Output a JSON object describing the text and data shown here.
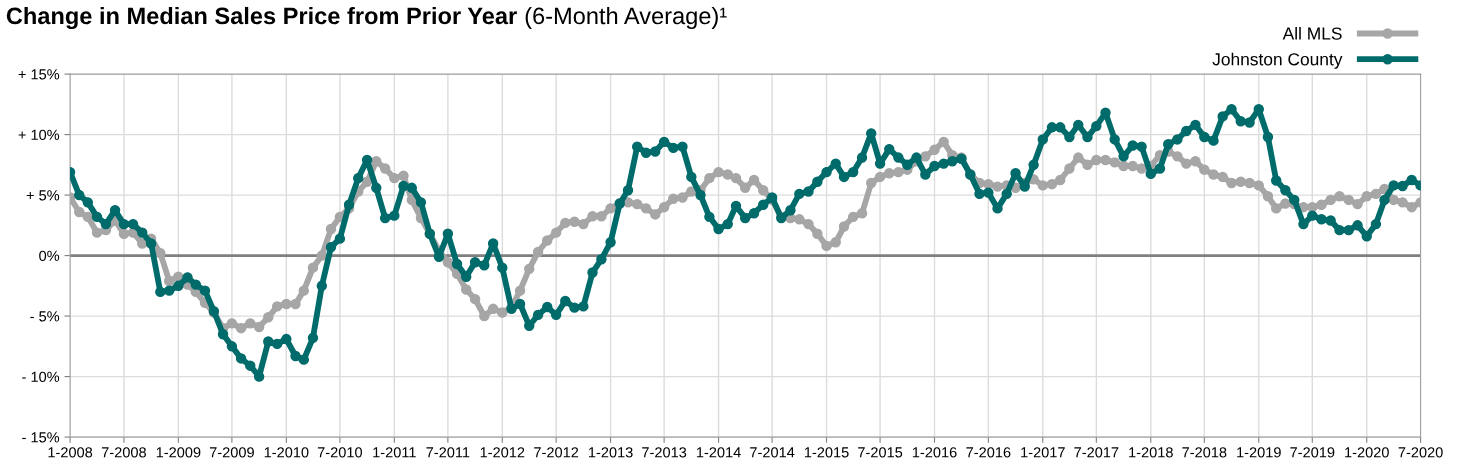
{
  "chart_data": {
    "type": "line",
    "title": "Change in Median Sales Price from Prior Year",
    "subtitle": "(6-Month Average)¹",
    "x": [
      "2008-01",
      "2008-02",
      "2008-03",
      "2008-04",
      "2008-05",
      "2008-06",
      "2008-07",
      "2008-08",
      "2008-09",
      "2008-10",
      "2008-11",
      "2008-12",
      "2009-01",
      "2009-02",
      "2009-03",
      "2009-04",
      "2009-05",
      "2009-06",
      "2009-07",
      "2009-08",
      "2009-09",
      "2009-10",
      "2009-11",
      "2009-12",
      "2010-01",
      "2010-02",
      "2010-03",
      "2010-04",
      "2010-05",
      "2010-06",
      "2010-07",
      "2010-08",
      "2010-09",
      "2010-10",
      "2010-11",
      "2010-12",
      "2011-01",
      "2011-02",
      "2011-03",
      "2011-04",
      "2011-05",
      "2011-06",
      "2011-07",
      "2011-08",
      "2011-09",
      "2011-10",
      "2011-11",
      "2011-12",
      "2012-01",
      "2012-02",
      "2012-03",
      "2012-04",
      "2012-05",
      "2012-06",
      "2012-07",
      "2012-08",
      "2012-09",
      "2012-10",
      "2012-11",
      "2012-12",
      "2013-01",
      "2013-02",
      "2013-03",
      "2013-04",
      "2013-05",
      "2013-06",
      "2013-07",
      "2013-08",
      "2013-09",
      "2013-10",
      "2013-11",
      "2013-12",
      "2014-01",
      "2014-02",
      "2014-03",
      "2014-04",
      "2014-05",
      "2014-06",
      "2014-07",
      "2014-08",
      "2014-09",
      "2014-10",
      "2014-11",
      "2014-12",
      "2015-01",
      "2015-02",
      "2015-03",
      "2015-04",
      "2015-05",
      "2015-06",
      "2015-07",
      "2015-08",
      "2015-09",
      "2015-10",
      "2015-11",
      "2015-12",
      "2016-01",
      "2016-02",
      "2016-03",
      "2016-04",
      "2016-05",
      "2016-06",
      "2016-07",
      "2016-08",
      "2016-09",
      "2016-10",
      "2016-11",
      "2016-12",
      "2017-01",
      "2017-02",
      "2017-03",
      "2017-04",
      "2017-05",
      "2017-06",
      "2017-07",
      "2017-08",
      "2017-09",
      "2017-10",
      "2017-11",
      "2017-12",
      "2018-01",
      "2018-02",
      "2018-03",
      "2018-04",
      "2018-05",
      "2018-06",
      "2018-07",
      "2018-08",
      "2018-09",
      "2018-10",
      "2018-11",
      "2018-12",
      "2019-01",
      "2019-02",
      "2019-03",
      "2019-04",
      "2019-05",
      "2019-06",
      "2019-07",
      "2019-08",
      "2019-09",
      "2019-10",
      "2019-11",
      "2019-12",
      "2020-01",
      "2020-02",
      "2020-03",
      "2020-04",
      "2020-05",
      "2020-06",
      "2020-07"
    ],
    "series": [
      {
        "name": "All MLS",
        "color": "#a6a6a6",
        "values": [
          4.8,
          3.6,
          3.2,
          1.9,
          2.1,
          2.9,
          1.8,
          1.9,
          1.0,
          1.4,
          0.2,
          -2.1,
          -1.75,
          -2.4,
          -3.0,
          -3.9,
          -4.7,
          -6.0,
          -5.6,
          -6.0,
          -5.6,
          -5.9,
          -5.1,
          -4.2,
          -4.0,
          -4.0,
          -2.9,
          -1.0,
          0.0,
          2.2,
          3.2,
          3.9,
          5.3,
          6.1,
          7.8,
          7.2,
          6.4,
          6.6,
          4.6,
          3.1,
          1.8,
          0.4,
          -0.55,
          -1.5,
          -2.8,
          -3.6,
          -5.0,
          -4.4,
          -4.7,
          -4.3,
          -2.9,
          -1.1,
          0.3,
          1.25,
          1.9,
          2.7,
          2.8,
          2.6,
          3.25,
          3.25,
          3.9,
          4.3,
          4.4,
          4.25,
          3.9,
          3.4,
          4.0,
          4.7,
          4.8,
          5.3,
          5.4,
          6.4,
          6.9,
          6.7,
          6.4,
          5.6,
          6.25,
          5.4,
          4.6,
          3.2,
          3.1,
          3.0,
          2.6,
          1.8,
          0.8,
          1.1,
          2.4,
          3.2,
          3.5,
          6.0,
          6.5,
          6.8,
          6.9,
          7.1,
          7.8,
          8.2,
          8.75,
          9.4,
          8.3,
          8.1,
          6.7,
          6.0,
          5.9,
          5.7,
          5.8,
          5.6,
          6.0,
          6.3,
          5.8,
          5.9,
          6.25,
          7.2,
          8.1,
          7.5,
          7.9,
          7.9,
          7.7,
          7.4,
          7.4,
          7.2,
          7.4,
          8.3,
          8.6,
          8.2,
          7.6,
          7.8,
          7.1,
          6.7,
          6.5,
          6.0,
          6.1,
          6.0,
          5.8,
          4.9,
          3.9,
          4.3,
          4.25,
          4.0,
          4.0,
          4.2,
          4.6,
          4.9,
          4.6,
          4.25,
          4.9,
          5.1,
          5.5,
          4.6,
          4.4,
          4.0,
          4.4
        ]
      },
      {
        "name": "Johnston County",
        "color": "#006b6b",
        "values": [
          6.9,
          5.0,
          4.4,
          3.2,
          2.6,
          3.75,
          2.6,
          2.6,
          1.9,
          1.0,
          -3.0,
          -2.9,
          -2.5,
          -1.8,
          -2.4,
          -2.9,
          -4.6,
          -6.5,
          -7.5,
          -8.5,
          -9.1,
          -10.0,
          -7.1,
          -7.3,
          -6.9,
          -8.3,
          -8.6,
          -6.8,
          -2.5,
          0.7,
          1.4,
          4.2,
          6.4,
          7.9,
          5.6,
          3.1,
          3.3,
          5.75,
          5.6,
          4.4,
          1.8,
          -0.1,
          1.8,
          -0.7,
          -1.75,
          -0.55,
          -0.8,
          1.0,
          -1.0,
          -4.4,
          -4.0,
          -5.8,
          -4.9,
          -4.25,
          -4.9,
          -3.75,
          -4.3,
          -4.2,
          -1.4,
          -0.3,
          1.1,
          4.3,
          5.4,
          9.0,
          8.5,
          8.6,
          9.4,
          8.9,
          9.0,
          6.5,
          5.0,
          3.2,
          2.2,
          2.6,
          4.1,
          3.1,
          3.5,
          4.2,
          4.8,
          3.1,
          3.75,
          5.1,
          5.3,
          6.1,
          6.9,
          7.6,
          6.5,
          6.9,
          8.1,
          10.1,
          7.6,
          8.8,
          8.1,
          7.5,
          8.1,
          6.7,
          7.4,
          7.6,
          7.8,
          8.0,
          6.7,
          5.1,
          5.2,
          3.9,
          5.1,
          6.8,
          5.7,
          7.5,
          9.6,
          10.6,
          10.6,
          9.8,
          10.8,
          9.8,
          10.7,
          11.8,
          9.6,
          8.2,
          9.1,
          9.0,
          6.75,
          7.2,
          9.2,
          9.6,
          10.3,
          10.8,
          9.8,
          9.5,
          11.5,
          12.1,
          11.1,
          11.0,
          12.1,
          9.8,
          6.2,
          5.4,
          4.6,
          2.6,
          3.3,
          3.0,
          2.9,
          2.1,
          2.1,
          2.5,
          1.6,
          2.6,
          4.6,
          5.8,
          5.75,
          6.25,
          5.8
        ]
      }
    ],
    "xlim": [
      "2008-01",
      "2020-07"
    ],
    "xticks": [
      {
        "value": "2008-01",
        "label": "1-2008"
      },
      {
        "value": "2008-07",
        "label": "7-2008"
      },
      {
        "value": "2009-01",
        "label": "1-2009"
      },
      {
        "value": "2009-07",
        "label": "7-2009"
      },
      {
        "value": "2010-01",
        "label": "1-2010"
      },
      {
        "value": "2010-07",
        "label": "7-2010"
      },
      {
        "value": "2011-01",
        "label": "1-2011"
      },
      {
        "value": "2011-07",
        "label": "7-2011"
      },
      {
        "value": "2012-01",
        "label": "1-2012"
      },
      {
        "value": "2012-07",
        "label": "7-2012"
      },
      {
        "value": "2013-01",
        "label": "1-2013"
      },
      {
        "value": "2013-07",
        "label": "7-2013"
      },
      {
        "value": "2014-01",
        "label": "1-2014"
      },
      {
        "value": "2014-07",
        "label": "7-2014"
      },
      {
        "value": "2015-01",
        "label": "1-2015"
      },
      {
        "value": "2015-07",
        "label": "7-2015"
      },
      {
        "value": "2016-01",
        "label": "1-2016"
      },
      {
        "value": "2016-07",
        "label": "7-2016"
      },
      {
        "value": "2017-01",
        "label": "1-2017"
      },
      {
        "value": "2017-07",
        "label": "7-2017"
      },
      {
        "value": "2018-01",
        "label": "1-2018"
      },
      {
        "value": "2018-07",
        "label": "7-2018"
      },
      {
        "value": "2019-01",
        "label": "1-2019"
      },
      {
        "value": "2019-07",
        "label": "7-2019"
      },
      {
        "value": "2020-01",
        "label": "1-2020"
      },
      {
        "value": "2020-07",
        "label": "7-2020"
      }
    ],
    "ylim": [
      -15,
      15
    ],
    "yticks": [
      {
        "value": -15,
        "label": "- 15%"
      },
      {
        "value": -10,
        "label": "- 10%"
      },
      {
        "value": -5,
        "label": "- 5%"
      },
      {
        "value": 0,
        "label": "0%"
      },
      {
        "value": 5,
        "label": "+ 5%"
      },
      {
        "value": 10,
        "label": "+ 10%"
      },
      {
        "value": 15,
        "label": "+ 15%"
      }
    ],
    "ref_lines": [
      {
        "axis": "y",
        "value": 0,
        "color": "#7f7f7f"
      }
    ],
    "grid": true,
    "legend": "top right",
    "marker": "circle",
    "line_style": "solid"
  }
}
